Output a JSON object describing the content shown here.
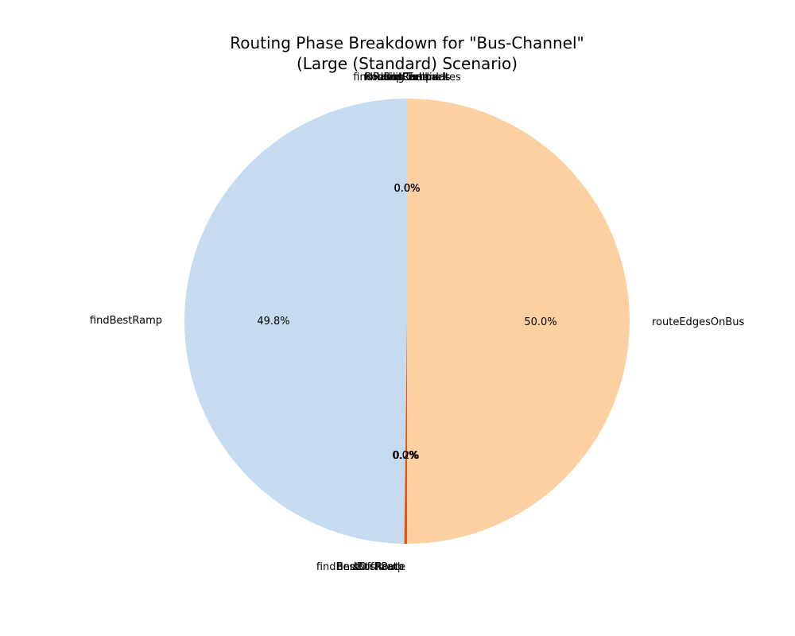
{
  "chart_data": {
    "type": "pie",
    "title": "Routing Phase Breakdown for \"Bus-Channel\"",
    "subtitle": "(Large (Standard) Scenario)",
    "start_angle": 90,
    "direction": "counterclockwise",
    "slices": [
      {
        "label": "findBestRamp",
        "value": 49.8,
        "pct_text": "49.8%",
        "color": "#c6dbef"
      },
      {
        "label": "findBestOffRamp",
        "value": 0.0,
        "pct_text": "0.0%",
        "color": "#9ecae1"
      },
      {
        "label": "stitchPath",
        "value": 0.0,
        "pct_text": "0.0%",
        "color": "#fd8d3c"
      },
      {
        "label": "findBusRoute",
        "value": 0.2,
        "pct_text": "0.2%",
        "color": "#e6550d"
      },
      {
        "label": "routeEdgesOnBus",
        "value": 50.0,
        "pct_text": "50.0%",
        "color": "#fdd0a2"
      },
      {
        "label": "Routing Fallback",
        "value": 0.0,
        "pct_text": "0.0%",
        "color": "#a1d99b"
      },
      {
        "label": "buildRamps",
        "value": 0.0,
        "pct_text": "0.0%",
        "color": "#74c476"
      },
      {
        "label": "findBusChannels",
        "value": 0.0,
        "pct_text": "0.0%",
        "color": "#bcbddc"
      },
      {
        "label": "findRampCandidates",
        "value": 0.0,
        "pct_text": "0.0%",
        "color": "#9e9ac8"
      },
      {
        "label": "initPorts",
        "value": 0.0,
        "pct_text": "0.0%",
        "color": "#dadaeb"
      }
    ]
  }
}
